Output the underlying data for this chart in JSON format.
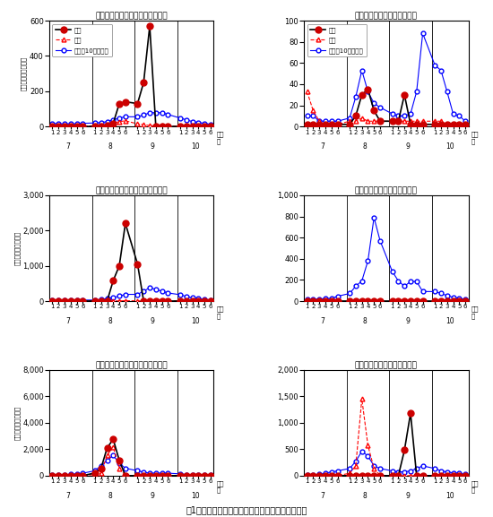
{
  "x_positions": [
    1,
    2,
    3,
    4,
    5,
    6,
    8,
    9,
    10,
    11,
    12,
    13,
    15,
    16,
    17,
    18,
    19,
    20,
    22,
    23,
    24,
    25,
    26,
    27
  ],
  "x_tick_labels": [
    "1",
    "2",
    "3",
    "4",
    "5",
    "6",
    "1",
    "2",
    "3",
    "4",
    "5",
    "6",
    "1",
    "2",
    "3",
    "4",
    "5",
    "6",
    "1",
    "2",
    "3",
    "4",
    "5",
    "6"
  ],
  "month_centers": [
    3.5,
    10.5,
    17.5,
    24.5
  ],
  "month_labels": [
    "7",
    "8",
    "9",
    "10"
  ],
  "month_dividers": [
    7.5,
    14.5,
    21.5
  ],
  "plots": [
    {
      "title": "チャバネアオカメムシ（合志市）",
      "ylim": [
        0,
        600
      ],
      "yticks": [
        0,
        200,
        400,
        600
      ],
      "show_legend": true,
      "honnen": [
        0,
        0,
        0,
        0,
        0,
        0,
        0,
        0,
        8,
        18,
        130,
        140,
        130,
        250,
        570,
        0,
        0,
        0,
        0,
        0,
        0,
        0,
        0,
        0
      ],
      "sakunen": [
        0,
        0,
        0,
        0,
        0,
        0,
        5,
        8,
        10,
        18,
        28,
        32,
        15,
        10,
        5,
        4,
        4,
        2,
        2,
        2,
        2,
        2,
        2,
        2
      ],
      "heinen": [
        18,
        15,
        15,
        15,
        15,
        18,
        20,
        22,
        28,
        38,
        48,
        55,
        55,
        65,
        78,
        78,
        78,
        68,
        48,
        38,
        28,
        22,
        18,
        12
      ]
    },
    {
      "title": "ツヤアオカメムシ（合志市）",
      "ylim": [
        0,
        100
      ],
      "yticks": [
        0,
        20,
        40,
        60,
        80,
        100
      ],
      "show_legend": true,
      "honnen": [
        2,
        2,
        2,
        2,
        2,
        2,
        2,
        10,
        30,
        35,
        15,
        5,
        5,
        5,
        30,
        2,
        2,
        2,
        2,
        2,
        2,
        2,
        2,
        2
      ],
      "sakunen": [
        33,
        15,
        5,
        2,
        2,
        2,
        5,
        5,
        8,
        5,
        5,
        5,
        5,
        5,
        5,
        5,
        5,
        5,
        5,
        5,
        2,
        2,
        2,
        2
      ],
      "heinen": [
        10,
        10,
        5,
        5,
        5,
        5,
        8,
        28,
        53,
        33,
        22,
        18,
        12,
        10,
        10,
        12,
        33,
        88,
        58,
        53,
        33,
        12,
        10,
        5
      ]
    },
    {
      "title": "チャバネアオカメムシ（宇城市）",
      "ylim": [
        0,
        3000
      ],
      "yticks": [
        0,
        1000,
        2000,
        3000
      ],
      "show_legend": false,
      "honnen": [
        0,
        0,
        0,
        0,
        0,
        0,
        0,
        0,
        0,
        580,
        1000,
        2200,
        1050,
        0,
        0,
        0,
        0,
        0,
        0,
        0,
        0,
        0,
        0,
        0
      ],
      "sakunen": [
        0,
        0,
        0,
        0,
        0,
        0,
        5,
        5,
        5,
        5,
        5,
        10,
        5,
        5,
        5,
        5,
        5,
        5,
        2,
        2,
        2,
        2,
        2,
        2
      ],
      "heinen": [
        20,
        20,
        20,
        20,
        20,
        28,
        28,
        45,
        75,
        95,
        140,
        190,
        190,
        280,
        380,
        330,
        280,
        230,
        180,
        130,
        90,
        70,
        50,
        30
      ]
    },
    {
      "title": "ツヤアオカメムシ（宇城市）",
      "ylim": [
        0,
        1000
      ],
      "yticks": [
        0,
        200,
        400,
        600,
        800,
        1000
      ],
      "show_legend": false,
      "honnen": [
        0,
        0,
        0,
        0,
        0,
        0,
        0,
        0,
        0,
        0,
        0,
        0,
        0,
        0,
        0,
        0,
        0,
        0,
        0,
        0,
        0,
        0,
        0,
        0
      ],
      "sakunen": [
        0,
        0,
        0,
        0,
        0,
        0,
        0,
        0,
        0,
        0,
        0,
        0,
        0,
        0,
        0,
        0,
        0,
        0,
        0,
        0,
        0,
        0,
        0,
        0
      ],
      "heinen": [
        18,
        18,
        18,
        25,
        25,
        45,
        72,
        140,
        190,
        380,
        790,
        570,
        280,
        190,
        140,
        185,
        185,
        90,
        90,
        72,
        52,
        35,
        25,
        18
      ]
    },
    {
      "title": "チャバネアオカメムシ（天草市）",
      "ylim": [
        0,
        8000
      ],
      "yticks": [
        0,
        2000,
        4000,
        6000,
        8000
      ],
      "show_legend": false,
      "honnen": [
        0,
        0,
        0,
        0,
        0,
        0,
        200,
        550,
        2100,
        2750,
        1150,
        0,
        0,
        0,
        0,
        0,
        0,
        0,
        0,
        0,
        0,
        0,
        0,
        0
      ],
      "sakunen": [
        0,
        0,
        0,
        0,
        0,
        0,
        80,
        180,
        1550,
        2150,
        550,
        0,
        0,
        0,
        0,
        0,
        0,
        0,
        0,
        0,
        0,
        0,
        0,
        0
      ],
      "heinen": [
        45,
        45,
        72,
        95,
        140,
        185,
        370,
        760,
        1150,
        1520,
        950,
        560,
        370,
        270,
        185,
        185,
        185,
        185,
        135,
        90,
        72,
        52,
        45,
        35
      ]
    },
    {
      "title": "ツヤアオカメムシ（天草市）",
      "ylim": [
        0,
        2000
      ],
      "yticks": [
        0,
        500,
        1000,
        1500,
        2000
      ],
      "show_legend": false,
      "honnen": [
        0,
        0,
        0,
        0,
        0,
        0,
        0,
        0,
        0,
        0,
        0,
        0,
        0,
        0,
        480,
        1180,
        0,
        0,
        0,
        0,
        0,
        0,
        0,
        0
      ],
      "sakunen": [
        0,
        0,
        0,
        0,
        0,
        0,
        45,
        185,
        1450,
        570,
        135,
        0,
        0,
        0,
        0,
        0,
        0,
        0,
        0,
        0,
        0,
        0,
        0,
        0
      ],
      "heinen": [
        18,
        18,
        25,
        45,
        72,
        90,
        135,
        270,
        460,
        370,
        185,
        135,
        90,
        72,
        72,
        90,
        135,
        185,
        135,
        90,
        72,
        52,
        45,
        25
      ]
    }
  ],
  "color_honnen": "#000000",
  "color_sakunen": "#ff0000",
  "color_heinen": "#0000ff",
  "legend_labels": [
    "本年",
    "昨年",
    "平年（10年平均）"
  ],
  "fig_title": "図1　予察灯における果樹カメムシ類誘殺数の推移"
}
